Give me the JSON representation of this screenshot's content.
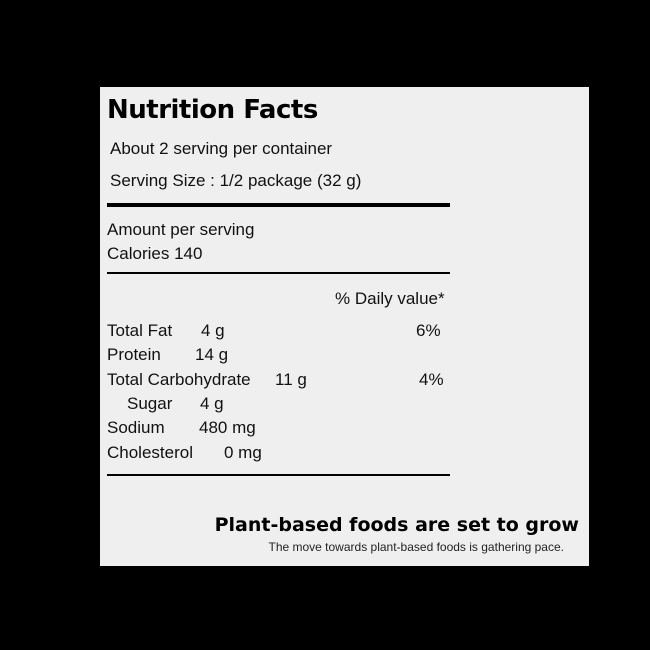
{
  "label": {
    "title": "Nutrition Facts",
    "servings_per_container": "About 2 serving per container",
    "serving_size": "Serving Size : 1/2 package (32 g)",
    "amount_per_serving": "Amount per serving",
    "calories": "Calories 140",
    "daily_value_header": "% Daily value*",
    "nutrients": [
      {
        "name": "Total Fat",
        "amount": "4 g",
        "dv": "6%"
      },
      {
        "name": "Protein",
        "amount": "14 g",
        "dv": ""
      },
      {
        "name": "Total Carbohydrate",
        "amount": "11 g",
        "dv": "4%"
      },
      {
        "name": "Sugar",
        "amount": "4 g",
        "dv": ""
      },
      {
        "name": "Sodium",
        "amount": "480 mg",
        "dv": ""
      },
      {
        "name": "Cholesterol",
        "amount": "0 mg",
        "dv": ""
      }
    ]
  },
  "footer": {
    "headline": "Plant-based foods are set to grow",
    "subtext": "The move towards plant-based foods is gathering pace."
  },
  "colors": {
    "background": "#000000",
    "panel": "#efefef",
    "text": "#111111"
  }
}
